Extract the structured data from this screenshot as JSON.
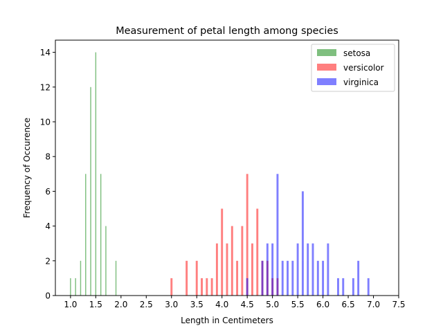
{
  "chart_data": {
    "type": "bar",
    "title": "Measurement of petal length among species",
    "xlabel": "Length in Centimeters",
    "ylabel": "Frequency of Occurence",
    "xlim": [
      0.7,
      7.5
    ],
    "ylim": [
      0,
      14.7
    ],
    "xticks": [
      "1.0",
      "1.5",
      "2.0",
      "2.5",
      "3.0",
      "3.5",
      "4.0",
      "4.5",
      "5.0",
      "5.5",
      "6.0",
      "6.5",
      "7.0",
      "7.5"
    ],
    "yticks": [
      "0",
      "2",
      "4",
      "6",
      "8",
      "10",
      "12",
      "14"
    ],
    "grid": false,
    "legend_position": "top-right",
    "series": [
      {
        "name": "setosa",
        "color": "#008000",
        "opacity": 0.5,
        "bar_width": 0.02,
        "x": [
          1.0,
          1.1,
          1.2,
          1.3,
          1.4,
          1.5,
          1.6,
          1.7,
          1.9
        ],
        "values": [
          1,
          1,
          2,
          7,
          12,
          14,
          7,
          4,
          2
        ]
      },
      {
        "name": "versicolor",
        "color": "#ff0000",
        "opacity": 0.5,
        "bar_width": 0.04,
        "x": [
          3.0,
          3.3,
          3.5,
          3.6,
          3.7,
          3.8,
          3.9,
          4.0,
          4.1,
          4.2,
          4.3,
          4.4,
          4.5,
          4.6,
          4.7,
          4.8,
          4.9,
          5.0,
          5.1
        ],
        "values": [
          1,
          2,
          2,
          1,
          1,
          1,
          3,
          5,
          3,
          4,
          2,
          4,
          7,
          3,
          5,
          2,
          2,
          1,
          1
        ]
      },
      {
        "name": "virginica",
        "color": "#0000ff",
        "opacity": 0.5,
        "bar_width": 0.04,
        "x": [
          4.5,
          4.8,
          4.9,
          5.0,
          5.1,
          5.2,
          5.3,
          5.4,
          5.5,
          5.6,
          5.7,
          5.8,
          5.9,
          6.0,
          6.1,
          6.3,
          6.4,
          6.6,
          6.7,
          6.9
        ],
        "values": [
          1,
          2,
          3,
          3,
          7,
          2,
          2,
          2,
          3,
          6,
          3,
          3,
          2,
          2,
          3,
          1,
          1,
          1,
          2,
          1
        ]
      }
    ]
  }
}
